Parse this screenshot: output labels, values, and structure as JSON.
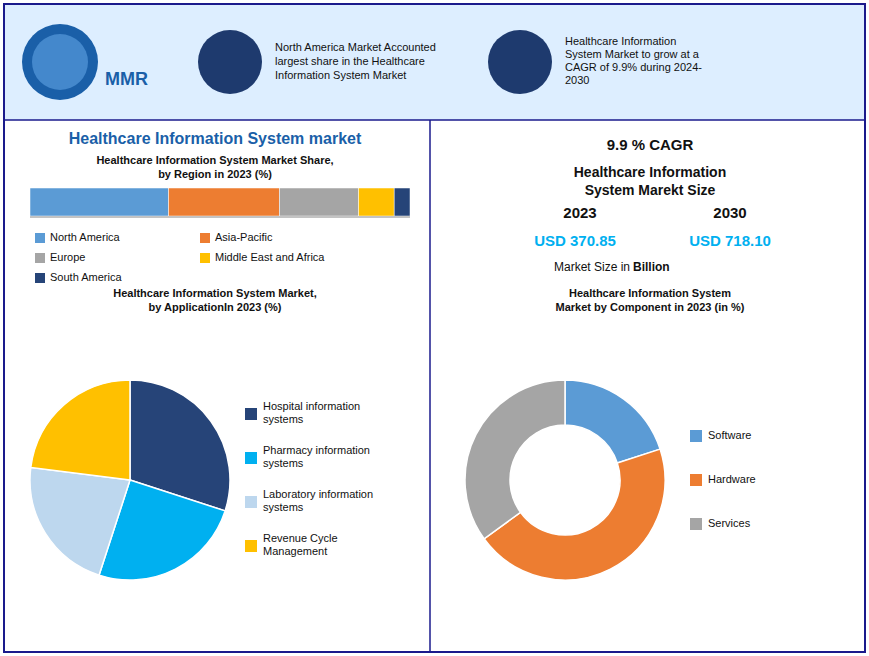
{
  "chart_data": [
    {
      "type": "bar",
      "orientation": "horizontal",
      "stacked": true,
      "title": "Healthcare Information System Market Share,\nby Region in 2023 (%)",
      "categories": [
        null
      ],
      "series": [
        {
          "name": "North America",
          "color": "#5B9BD5",
          "values": [
            35
          ]
        },
        {
          "name": "Asia-Pacific",
          "color": "#ED7D31",
          "values": [
            28
          ]
        },
        {
          "name": "Europe",
          "color": "#A5A5A5",
          "values": [
            20
          ]
        },
        {
          "name": "Middle East and Africa",
          "color": "#FFC000",
          "values": [
            9
          ]
        },
        {
          "name": "South America",
          "color": "#264478",
          "values": [
            4
          ]
        }
      ],
      "xlim": [
        0,
        96
      ],
      "tick_labels": false,
      "legend": "bottom",
      "annotations": [
        {
          "text": "Healthcare Information System market",
          "color": "#1a5fa8"
        },
        {
          "text": "MMR",
          "color": "#1a5fa8"
        },
        {
          "text": "North America Market Accounted\nlargest share in the Healthcare\nInformation System Market"
        },
        {
          "text": "Healthcare Information\nSystem Market to grow at a\nCAGR of 9.9% during 2024-\n2030"
        },
        {
          "text": "9.9 % CAGR"
        },
        {
          "text": "Healthcare Information\nSystem Marekt Size"
        },
        {
          "text": "2023"
        },
        {
          "text": "2030"
        },
        {
          "text": "USD 370.85",
          "color": "#00B0F0"
        },
        {
          "text": "USD 718.10",
          "color": "#00B0F0"
        },
        {
          "text": "Market Size in "
        },
        {
          "text": "Billion"
        }
      ]
    },
    {
      "type": "pie",
      "title": "Healthcare Information System Market,\nby ApplicationIn 2023 (%)",
      "categories": [
        "Hospital information\nsystems",
        "Pharmacy information\nsystems",
        "Laboratory information\nsystems",
        "Revenue Cycle\nManagement"
      ],
      "values": [
        30,
        25,
        22,
        23
      ],
      "colors": [
        "#264478",
        "#00B0F0",
        "#BDD7EE",
        "#FFC000"
      ],
      "legend": "right"
    },
    {
      "type": "donut",
      "title": "Healthcare Information System\nMarket by Component in 2023 (in %)",
      "categories": [
        "Software",
        "Hardware",
        "Services"
      ],
      "values": [
        20,
        45,
        35
      ],
      "colors": [
        "#5B9BD5",
        "#ED7D31",
        "#A5A5A5"
      ],
      "legend": "right"
    }
  ]
}
